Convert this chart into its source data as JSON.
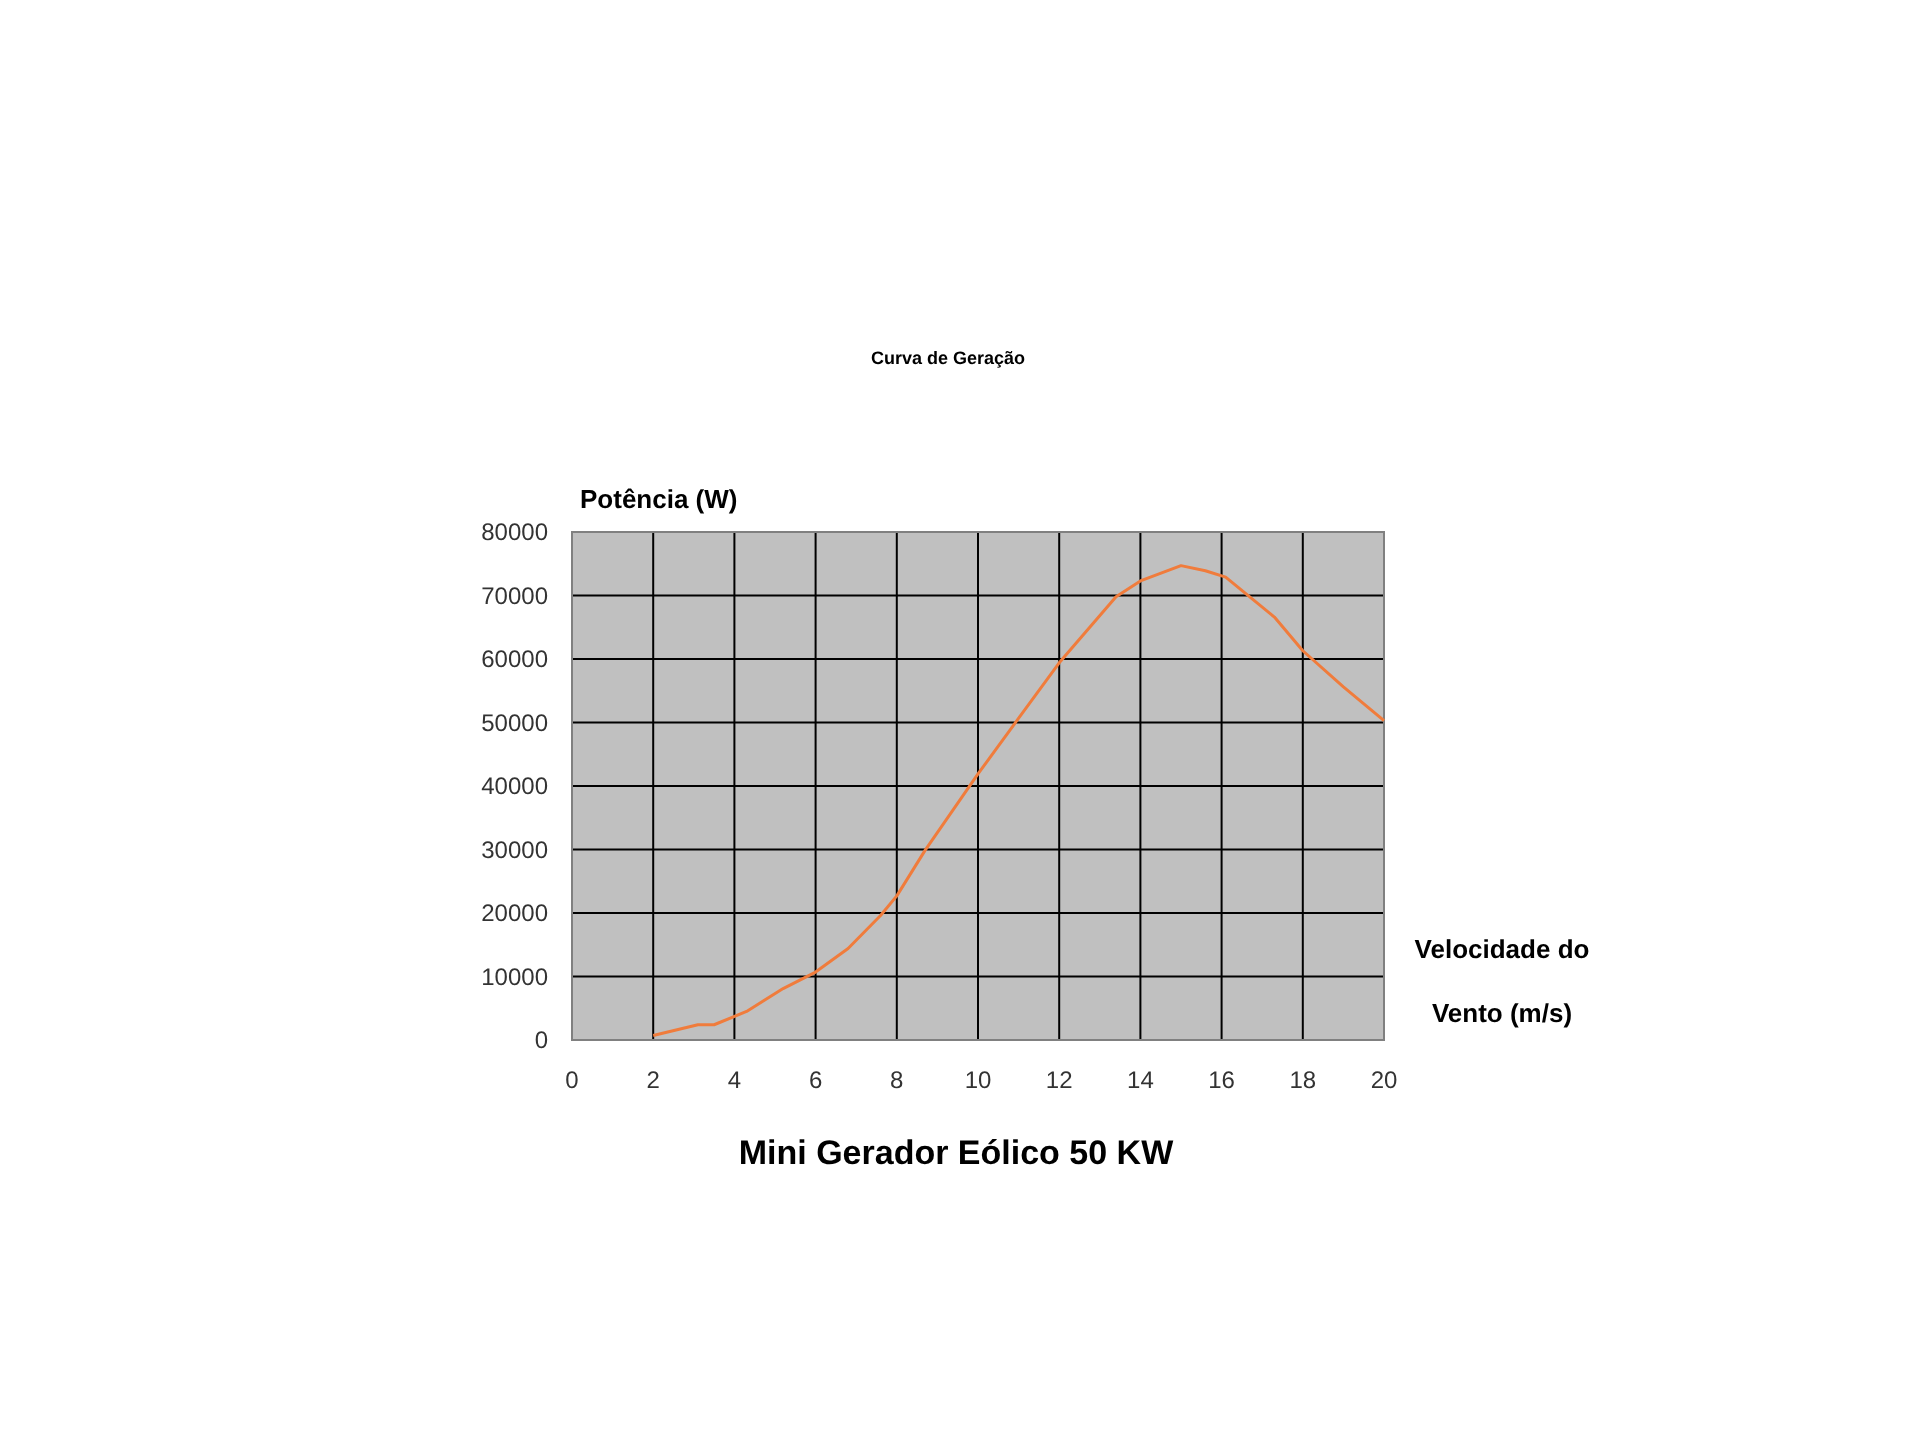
{
  "chart_data": {
    "type": "line",
    "title": "Curva de Geração",
    "subtitle": "Mini Gerador Eólico 50 KW",
    "xlabel": "Velocidade do Vento (m/s)",
    "ylabel": "Potência (W)",
    "x": [
      2,
      3.1,
      3.5,
      4.3,
      5.2,
      6,
      6.8,
      7.6,
      8,
      8.7,
      10,
      10.9,
      12,
      13.4,
      14,
      15,
      15.6,
      16.1,
      17.3,
      18,
      19,
      20
    ],
    "series": [
      {
        "color": "#f07c3c",
        "values": [
          700,
          2400,
          2400,
          4500,
          8100,
          10700,
          14400,
          19600,
          22700,
          29900,
          41900,
          49800,
          59400,
          69800,
          72300,
          74700,
          73900,
          72900,
          66600,
          61300,
          55600,
          50300
        ]
      }
    ],
    "xlim": [
      0,
      20
    ],
    "xticks": [
      0,
      2,
      4,
      6,
      8,
      10,
      12,
      14,
      16,
      18,
      20
    ],
    "ylim": [
      0,
      80000
    ],
    "yticks": [
      0,
      10000,
      20000,
      30000,
      40000,
      50000,
      60000,
      70000,
      80000
    ],
    "grid": true,
    "marker": "none",
    "line_style": "solid"
  }
}
